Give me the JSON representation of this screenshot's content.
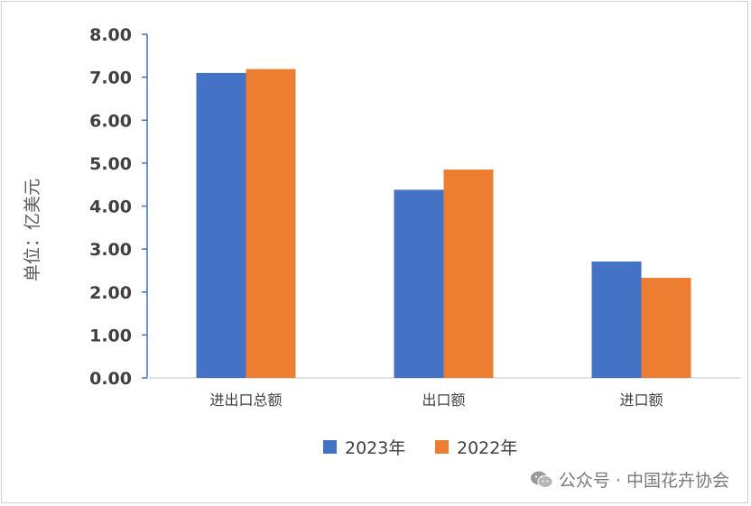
{
  "chart_data": {
    "type": "bar",
    "categories": [
      "进出口总额",
      "出口额",
      "进口额"
    ],
    "series": [
      {
        "name": "2023年",
        "values": [
          7.1,
          4.38,
          2.71
        ],
        "color": "#4472C4"
      },
      {
        "name": "2022年",
        "values": [
          7.19,
          4.85,
          2.33
        ],
        "color": "#ED7D31"
      }
    ],
    "ylabel": "单位：亿美元",
    "ylim": [
      0,
      8
    ],
    "yticks": [
      "0.00",
      "1.00",
      "2.00",
      "3.00",
      "4.00",
      "5.00",
      "6.00",
      "7.00",
      "8.00"
    ],
    "legend_position": "bottom",
    "grid": false
  },
  "watermark": {
    "text": "公众号 · 中国花卉协会",
    "icon": "wechat-icon"
  }
}
